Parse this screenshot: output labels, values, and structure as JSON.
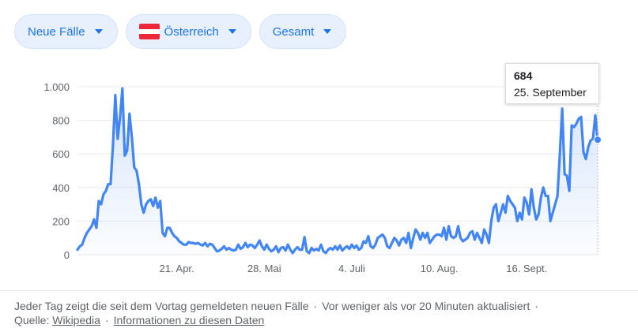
{
  "filters": {
    "metric": "Neue Fälle",
    "country": "Österreich",
    "range": "Gesamt",
    "flag_colors": [
      "#ed2939",
      "#ffffff",
      "#ed2939"
    ]
  },
  "tooltip": {
    "value": "684",
    "date": "25. September"
  },
  "footer": {
    "note": "Jeder Tag zeigt die seit dem Vortag gemeldeten neuen Fälle",
    "updated": "Vor weniger als vor 20 Minuten aktualisiert",
    "source_label": "Quelle:",
    "source_link": "Wikipedia",
    "info_link": "Informationen zu diesen Daten",
    "separator": "·"
  },
  "colors": {
    "line": "#4285f4",
    "accent": "#1a73e8",
    "grid": "#ebebeb",
    "text": "#5f6368"
  },
  "chart_data": {
    "type": "line",
    "title": "",
    "xlabel": "",
    "ylabel": "",
    "ylim": [
      0,
      1000
    ],
    "yticks": [
      0,
      200,
      400,
      600,
      800,
      1000
    ],
    "ytick_labels": [
      "0",
      "200",
      "400",
      "600",
      "800",
      "1.000"
    ],
    "xtick_labels": [
      {
        "label": "21. Apr.",
        "index": 42
      },
      {
        "label": "28. Mai",
        "index": 79
      },
      {
        "label": "4. Juli",
        "index": 116
      },
      {
        "label": "10. Aug.",
        "index": 153
      },
      {
        "label": "16. Sept.",
        "index": 190
      }
    ],
    "grid": true,
    "legend": "none",
    "series": [
      {
        "name": "",
        "values": [
          30,
          50,
          60,
          100,
          130,
          150,
          170,
          210,
          160,
          320,
          300,
          360,
          380,
          420,
          420,
          650,
          950,
          690,
          820,
          990,
          590,
          620,
          840,
          700,
          520,
          500,
          420,
          300,
          250,
          300,
          320,
          330,
          290,
          340,
          280,
          320,
          130,
          110,
          160,
          160,
          130,
          110,
          100,
          80,
          70,
          60,
          60,
          75,
          70,
          70,
          65,
          70,
          60,
          55,
          70,
          50,
          65,
          60,
          40,
          20,
          25,
          35,
          50,
          30,
          40,
          30,
          25,
          30,
          60,
          35,
          45,
          70,
          45,
          60,
          55,
          40,
          60,
          85,
          50,
          30,
          60,
          35,
          20,
          30,
          50,
          15,
          40,
          45,
          25,
          60,
          30,
          10,
          30,
          45,
          30,
          30,
          105,
          20,
          10,
          40,
          25,
          35,
          25,
          60,
          20,
          10,
          30,
          40,
          30,
          50,
          30,
          55,
          25,
          40,
          50,
          35,
          60,
          40,
          55,
          30,
          40,
          80,
          70,
          110,
          50,
          40,
          60,
          100,
          110,
          120,
          100,
          50,
          40,
          70,
          100,
          85,
          55,
          90,
          100,
          70,
          130,
          40,
          100,
          150,
          130,
          90,
          130,
          100,
          130,
          70,
          90,
          110,
          120,
          120,
          110,
          160,
          90,
          170,
          110,
          100,
          110,
          170,
          100,
          80,
          90,
          100,
          130,
          140,
          90,
          130,
          100,
          70,
          150,
          120,
          70,
          200,
          280,
          300,
          200,
          250,
          300,
          250,
          350,
          320,
          300,
          280,
          200,
          250,
          210,
          340,
          310,
          240,
          390,
          280,
          210,
          240,
          340,
          400,
          350,
          350,
          200,
          250,
          300,
          350,
          600,
          870,
          480,
          470,
          380,
          770,
          760,
          780,
          810,
          820,
          610,
          570,
          640,
          680,
          690,
          830,
          684
        ]
      }
    ]
  }
}
